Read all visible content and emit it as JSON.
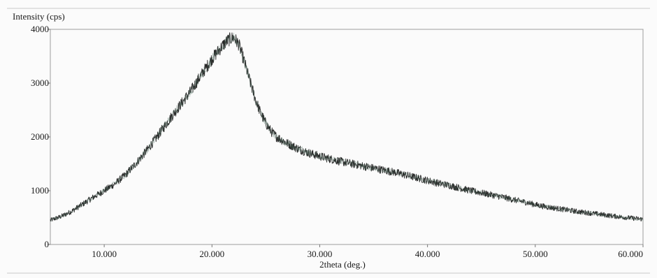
{
  "chart_data": {
    "type": "line",
    "title": "",
    "ylabel": "Intensity (cps)",
    "xlabel": "2theta (deg.)",
    "xlim": [
      5.0,
      60.0
    ],
    "ylim": [
      0,
      4000
    ],
    "x_ticks": [
      10.0,
      20.0,
      30.0,
      40.0,
      50.0,
      60.0
    ],
    "x_tick_labels": [
      "10.000",
      "20.000",
      "30.000",
      "40.000",
      "50.000",
      "60.000"
    ],
    "y_ticks": [
      0,
      1000,
      2000,
      3000,
      4000
    ],
    "y_tick_labels": [
      "0",
      "1000",
      "2000",
      "3000",
      "4000"
    ],
    "grid": false,
    "series": [
      {
        "color": "#2a2a2a",
        "x": [
          5.0,
          6.0,
          7.0,
          8.0,
          9.0,
          10.0,
          11.0,
          12.0,
          13.0,
          14.0,
          15.0,
          16.0,
          17.0,
          18.0,
          19.0,
          20.0,
          21.0,
          21.5,
          22.0,
          22.5,
          23.0,
          23.5,
          24.0,
          24.5,
          25.0,
          25.5,
          26.0,
          27.0,
          28.0,
          29.0,
          30.0,
          31.0,
          32.0,
          33.0,
          34.0,
          35.0,
          36.0,
          37.0,
          38.0,
          39.0,
          40.0,
          41.0,
          42.0,
          43.0,
          44.0,
          45.0,
          46.0,
          47.0,
          48.0,
          49.0,
          50.0,
          51.0,
          52.0,
          53.0,
          54.0,
          55.0,
          56.0,
          57.0,
          58.0,
          59.0,
          60.0
        ],
        "y": [
          450,
          520,
          620,
          750,
          880,
          1000,
          1130,
          1300,
          1520,
          1760,
          2030,
          2310,
          2580,
          2840,
          3150,
          3450,
          3700,
          3800,
          3850,
          3720,
          3400,
          3050,
          2720,
          2450,
          2250,
          2100,
          2000,
          1880,
          1780,
          1700,
          1640,
          1590,
          1540,
          1500,
          1460,
          1420,
          1380,
          1340,
          1290,
          1240,
          1190,
          1140,
          1100,
          1050,
          1000,
          960,
          920,
          880,
          830,
          790,
          740,
          700,
          670,
          640,
          610,
          585,
          560,
          535,
          510,
          490,
          470
        ],
        "noise_amplitude": 90
      }
    ]
  }
}
